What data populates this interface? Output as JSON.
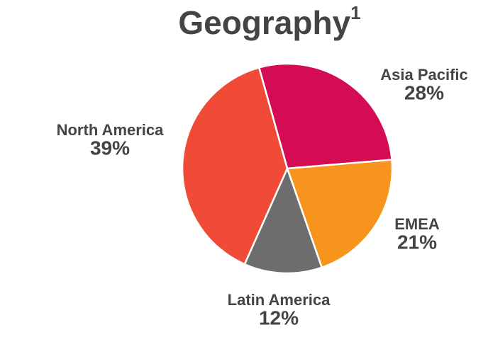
{
  "chart_data": {
    "type": "pie",
    "title": "Geography",
    "title_superscript": "1",
    "categories": [
      "Asia Pacific",
      "EMEA",
      "Latin America",
      "North America"
    ],
    "values": [
      28,
      21,
      12,
      39
    ],
    "value_labels": [
      "28%",
      "21%",
      "12%",
      "39%"
    ],
    "colors": [
      "#d30c54",
      "#f7941d",
      "#6d6d6d",
      "#f04b37"
    ]
  }
}
